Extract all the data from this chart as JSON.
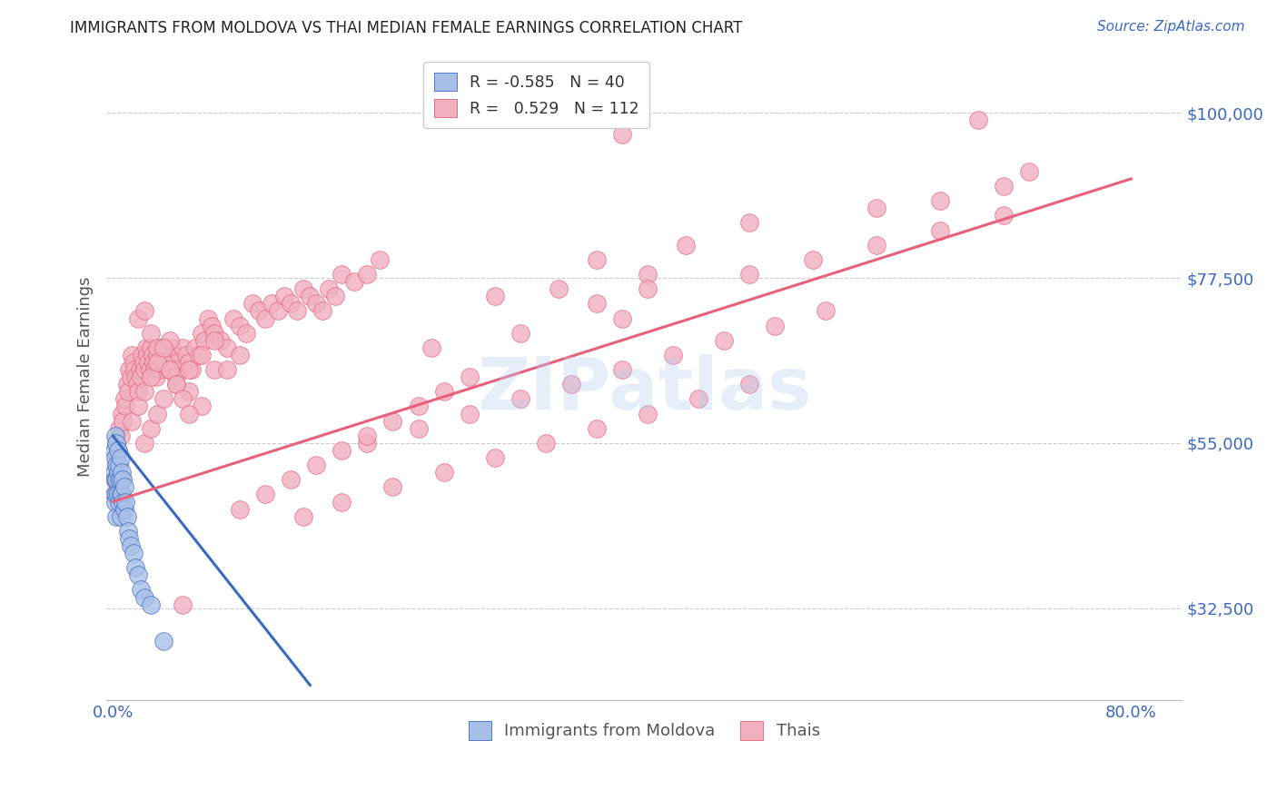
{
  "title": "IMMIGRANTS FROM MOLDOVA VS THAI MEDIAN FEMALE EARNINGS CORRELATION CHART",
  "source": "Source: ZipAtlas.com",
  "ylabel": "Median Female Earnings",
  "watermark": "ZIPatlas",
  "legend_bottom": [
    "Immigrants from Moldova",
    "Thais"
  ],
  "x_ticks": [
    0.0,
    0.1,
    0.2,
    0.3,
    0.4,
    0.5,
    0.6,
    0.7,
    0.8
  ],
  "x_tick_labels": [
    "0.0%",
    "",
    "",
    "",
    "",
    "",
    "",
    "",
    "80.0%"
  ],
  "y_ticks": [
    32500,
    55000,
    77500,
    100000
  ],
  "y_tick_labels": [
    "$32,500",
    "$55,000",
    "$77,500",
    "$100,000"
  ],
  "xlim": [
    -0.005,
    0.84
  ],
  "ylim": [
    20000,
    108000
  ],
  "blue_color": "#3a6abf",
  "pink_color": "#e8607a",
  "blue_fill": "#a8c0e8",
  "pink_fill": "#f0b0c0",
  "title_color": "#222222",
  "axis_label_color": "#555555",
  "tick_color": "#3a6abf",
  "grid_color": "#cccccc",
  "source_color": "#3a6abf",
  "moldova_x": [
    0.001,
    0.001,
    0.001,
    0.002,
    0.002,
    0.002,
    0.002,
    0.003,
    0.003,
    0.003,
    0.003,
    0.003,
    0.004,
    0.004,
    0.004,
    0.005,
    0.005,
    0.005,
    0.006,
    0.006,
    0.006,
    0.006,
    0.007,
    0.007,
    0.008,
    0.008,
    0.009,
    0.009,
    0.01,
    0.011,
    0.012,
    0.013,
    0.014,
    0.016,
    0.018,
    0.02,
    0.022,
    0.025,
    0.03,
    0.04
  ],
  "moldova_y": [
    54000,
    51000,
    48000,
    56000,
    53000,
    50000,
    47000,
    55000,
    52000,
    50000,
    48000,
    45000,
    54000,
    51000,
    48000,
    52000,
    50000,
    47000,
    53000,
    50000,
    48000,
    45000,
    51000,
    48000,
    50000,
    47000,
    49000,
    46000,
    47000,
    45000,
    43000,
    42000,
    41000,
    40000,
    38000,
    37000,
    35000,
    34000,
    33000,
    28000
  ],
  "thai_x": [
    0.001,
    0.002,
    0.003,
    0.003,
    0.004,
    0.005,
    0.006,
    0.007,
    0.008,
    0.009,
    0.01,
    0.011,
    0.012,
    0.013,
    0.014,
    0.015,
    0.016,
    0.017,
    0.018,
    0.019,
    0.02,
    0.021,
    0.022,
    0.023,
    0.024,
    0.025,
    0.026,
    0.027,
    0.028,
    0.029,
    0.03,
    0.031,
    0.032,
    0.033,
    0.034,
    0.035,
    0.036,
    0.037,
    0.038,
    0.04,
    0.042,
    0.044,
    0.046,
    0.048,
    0.05,
    0.052,
    0.055,
    0.058,
    0.06,
    0.062,
    0.065,
    0.068,
    0.07,
    0.072,
    0.075,
    0.078,
    0.08,
    0.085,
    0.09,
    0.095,
    0.1,
    0.105,
    0.11,
    0.115,
    0.12,
    0.125,
    0.13,
    0.135,
    0.14,
    0.145,
    0.15,
    0.155,
    0.16,
    0.165,
    0.17,
    0.175,
    0.18,
    0.19,
    0.2,
    0.21,
    0.02,
    0.025,
    0.03,
    0.035,
    0.04,
    0.045,
    0.05,
    0.06,
    0.07,
    0.08,
    0.025,
    0.03,
    0.035,
    0.04,
    0.05,
    0.06,
    0.07,
    0.08,
    0.09,
    0.1,
    0.015,
    0.02,
    0.025,
    0.03,
    0.035,
    0.04,
    0.045,
    0.05,
    0.055,
    0.06,
    0.3,
    0.38,
    0.45,
    0.5,
    0.6,
    0.65,
    0.7,
    0.72,
    0.35,
    0.42,
    0.25,
    0.32,
    0.4,
    0.38,
    0.42,
    0.5,
    0.55,
    0.6,
    0.65,
    0.7,
    0.2,
    0.24,
    0.28,
    0.32,
    0.36,
    0.4,
    0.44,
    0.48,
    0.52,
    0.56,
    0.15,
    0.18,
    0.22,
    0.26,
    0.3,
    0.34,
    0.38,
    0.42,
    0.46,
    0.5,
    0.1,
    0.12,
    0.14,
    0.16,
    0.18,
    0.2,
    0.22,
    0.24,
    0.26,
    0.28,
    0.055,
    0.4,
    0.68
  ],
  "thai_y": [
    50000,
    48000,
    52000,
    55000,
    54000,
    57000,
    56000,
    59000,
    58000,
    61000,
    60000,
    63000,
    62000,
    65000,
    64000,
    67000,
    66000,
    65000,
    64000,
    63000,
    62000,
    65000,
    64000,
    67000,
    66000,
    65000,
    68000,
    67000,
    66000,
    65000,
    68000,
    67000,
    66000,
    65000,
    64000,
    67000,
    66000,
    65000,
    68000,
    67000,
    66000,
    65000,
    68000,
    67000,
    66000,
    65000,
    68000,
    67000,
    66000,
    65000,
    68000,
    67000,
    70000,
    69000,
    72000,
    71000,
    70000,
    69000,
    68000,
    72000,
    71000,
    70000,
    74000,
    73000,
    72000,
    74000,
    73000,
    75000,
    74000,
    73000,
    76000,
    75000,
    74000,
    73000,
    76000,
    75000,
    78000,
    77000,
    78000,
    80000,
    72000,
    73000,
    70000,
    68000,
    66000,
    69000,
    64000,
    62000,
    60000,
    65000,
    55000,
    57000,
    59000,
    61000,
    63000,
    65000,
    67000,
    69000,
    65000,
    67000,
    58000,
    60000,
    62000,
    64000,
    66000,
    68000,
    65000,
    63000,
    61000,
    59000,
    75000,
    80000,
    82000,
    85000,
    87000,
    88000,
    90000,
    92000,
    76000,
    78000,
    68000,
    70000,
    72000,
    74000,
    76000,
    78000,
    80000,
    82000,
    84000,
    86000,
    55000,
    57000,
    59000,
    61000,
    63000,
    65000,
    67000,
    69000,
    71000,
    73000,
    45000,
    47000,
    49000,
    51000,
    53000,
    55000,
    57000,
    59000,
    61000,
    63000,
    46000,
    48000,
    50000,
    52000,
    54000,
    56000,
    58000,
    60000,
    62000,
    64000,
    33000,
    97000,
    99000
  ],
  "blue_trendline_x0": 0.0,
  "blue_trendline_x1": 0.155,
  "blue_trendline_y0": 56000,
  "blue_trendline_y1": 22000,
  "pink_trendline_x0": 0.0,
  "pink_trendline_x1": 0.8,
  "pink_trendline_y0": 47000,
  "pink_trendline_y1": 91000
}
